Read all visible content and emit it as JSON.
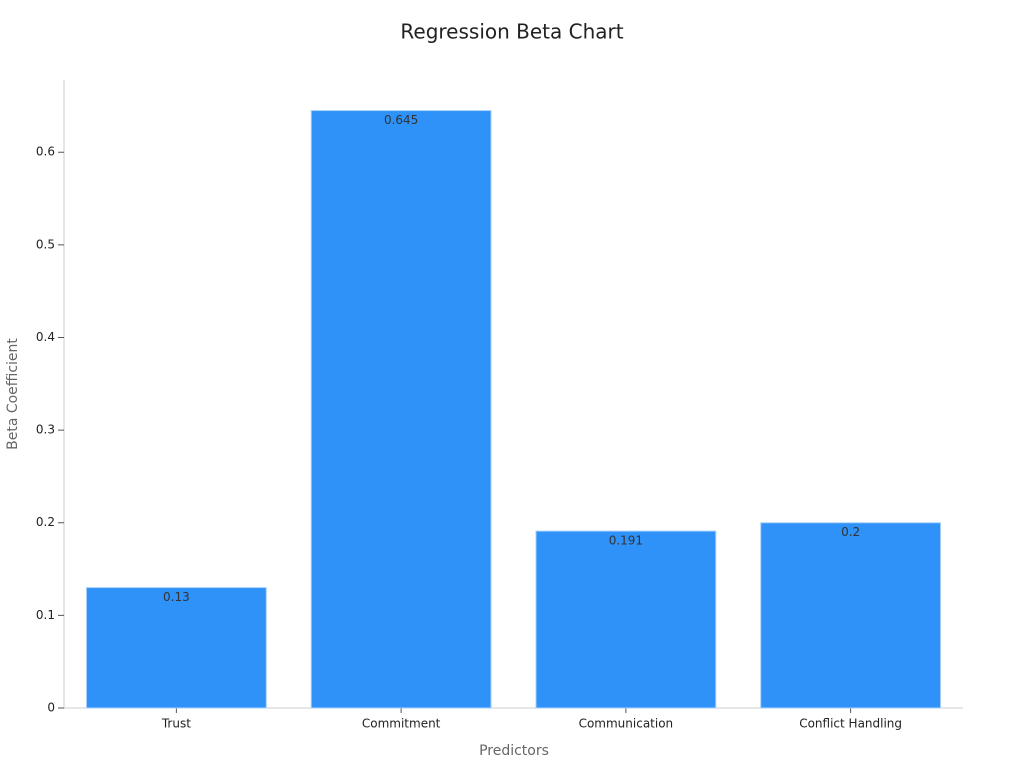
{
  "chart_data": {
    "type": "bar",
    "title": "Regression Beta Chart",
    "x_label": "Predictors",
    "y_label": "Beta Coefficient",
    "categories": [
      "Trust",
      "Commitment",
      "Communication",
      "Conflict Handling"
    ],
    "values": [
      0.13,
      0.645,
      0.191,
      0.2
    ],
    "color": "#2f92f8",
    "ylim": [
      0,
      0.678
    ],
    "yticks": [
      0,
      0.1,
      0.2,
      0.3,
      0.4,
      0.5,
      0.6
    ],
    "grid": false
  }
}
